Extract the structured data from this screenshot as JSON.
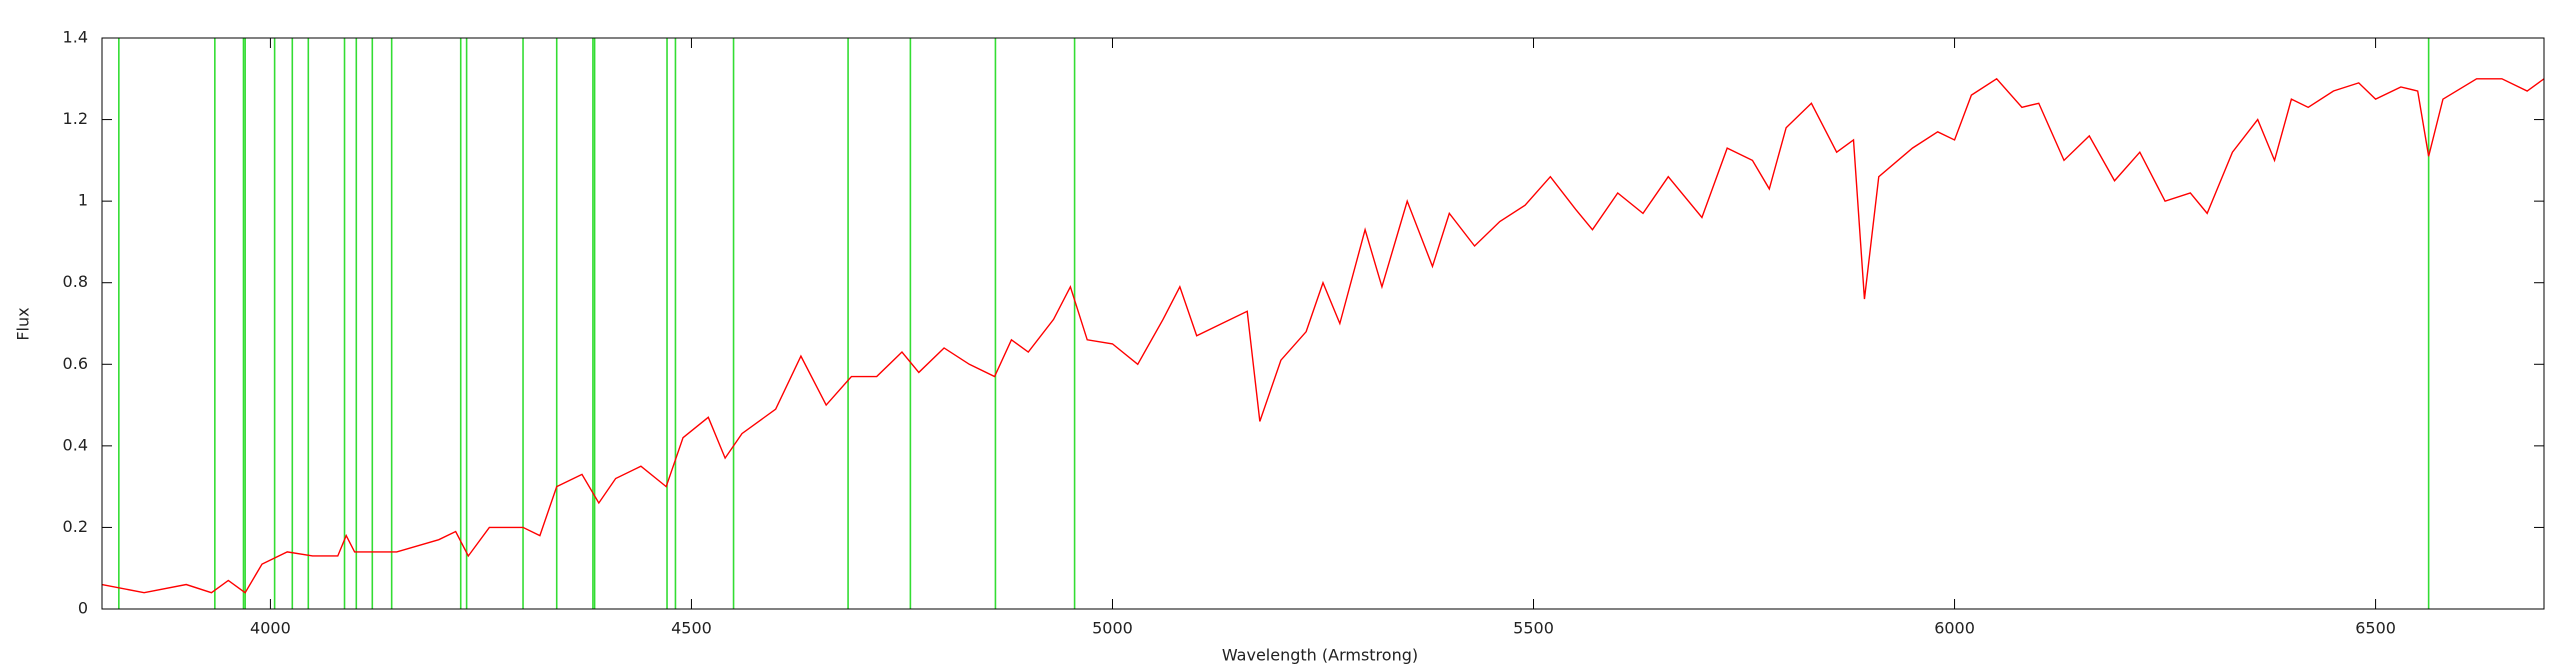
{
  "chart_data": {
    "type": "line",
    "xlabel": "Wavelength (Armstrong)",
    "ylabel": "Flux",
    "x": [
      3800,
      3850,
      3900,
      3930,
      3950,
      3970,
      3990,
      4020,
      4050,
      4080,
      4090,
      4100,
      4150,
      4200,
      4220,
      4235,
      4260,
      4300,
      4320,
      4340,
      4370,
      4390,
      4410,
      4440,
      4470,
      4490,
      4520,
      4540,
      4560,
      4600,
      4630,
      4660,
      4690,
      4720,
      4750,
      4770,
      4800,
      4830,
      4860,
      4880,
      4900,
      4930,
      4950,
      4970,
      5000,
      5030,
      5060,
      5080,
      5100,
      5130,
      5160,
      5175,
      5200,
      5230,
      5250,
      5270,
      5300,
      5320,
      5350,
      5380,
      5400,
      5430,
      5460,
      5490,
      5520,
      5550,
      5570,
      5600,
      5630,
      5660,
      5700,
      5730,
      5760,
      5780,
      5800,
      5830,
      5860,
      5880,
      5893,
      5910,
      5950,
      5980,
      6000,
      6020,
      6050,
      6080,
      6100,
      6130,
      6160,
      6190,
      6220,
      6250,
      6280,
      6300,
      6330,
      6360,
      6380,
      6400,
      6420,
      6450,
      6480,
      6500,
      6530,
      6550,
      6563,
      6580,
      6620,
      6650,
      6680,
      6700
    ],
    "values": [
      0.06,
      0.04,
      0.06,
      0.04,
      0.07,
      0.04,
      0.11,
      0.14,
      0.13,
      0.13,
      0.18,
      0.14,
      0.14,
      0.17,
      0.19,
      0.13,
      0.2,
      0.2,
      0.18,
      0.3,
      0.33,
      0.26,
      0.32,
      0.35,
      0.3,
      0.42,
      0.47,
      0.37,
      0.43,
      0.49,
      0.62,
      0.5,
      0.57,
      0.57,
      0.63,
      0.58,
      0.64,
      0.6,
      0.57,
      0.66,
      0.63,
      0.71,
      0.79,
      0.66,
      0.65,
      0.6,
      0.71,
      0.79,
      0.67,
      0.7,
      0.73,
      0.46,
      0.61,
      0.68,
      0.8,
      0.7,
      0.93,
      0.79,
      1.0,
      0.84,
      0.97,
      0.89,
      0.95,
      0.99,
      1.06,
      0.98,
      0.93,
      1.02,
      0.97,
      1.06,
      0.96,
      1.13,
      1.1,
      1.03,
      1.18,
      1.24,
      1.12,
      1.15,
      0.76,
      1.06,
      1.13,
      1.17,
      1.15,
      1.26,
      1.3,
      1.23,
      1.24,
      1.1,
      1.16,
      1.05,
      1.12,
      1.0,
      1.02,
      0.97,
      1.12,
      1.2,
      1.1,
      1.25,
      1.23,
      1.27,
      1.29,
      1.25,
      1.28,
      1.27,
      1.11,
      1.25,
      1.3,
      1.3,
      1.27,
      1.3
    ],
    "color": "#ff0000",
    "reference_lines": [
      3820,
      3934,
      3968,
      3970,
      4005,
      4026,
      4045,
      4088,
      4102,
      4121,
      4144,
      4226,
      4233,
      4300,
      4340,
      4383,
      4385,
      4471,
      4481,
      4550,
      4686,
      4760,
      4861,
      4955,
      6563
    ],
    "reference_color": "#33dd33",
    "xlim": [
      3800,
      6700
    ],
    "ylim": [
      0,
      1.4
    ],
    "xticks": [
      4000,
      4500,
      5000,
      5500,
      6000,
      6500
    ],
    "yticks": [
      0,
      0.2,
      0.4,
      0.6,
      0.8,
      1,
      1.2,
      1.4
    ]
  }
}
